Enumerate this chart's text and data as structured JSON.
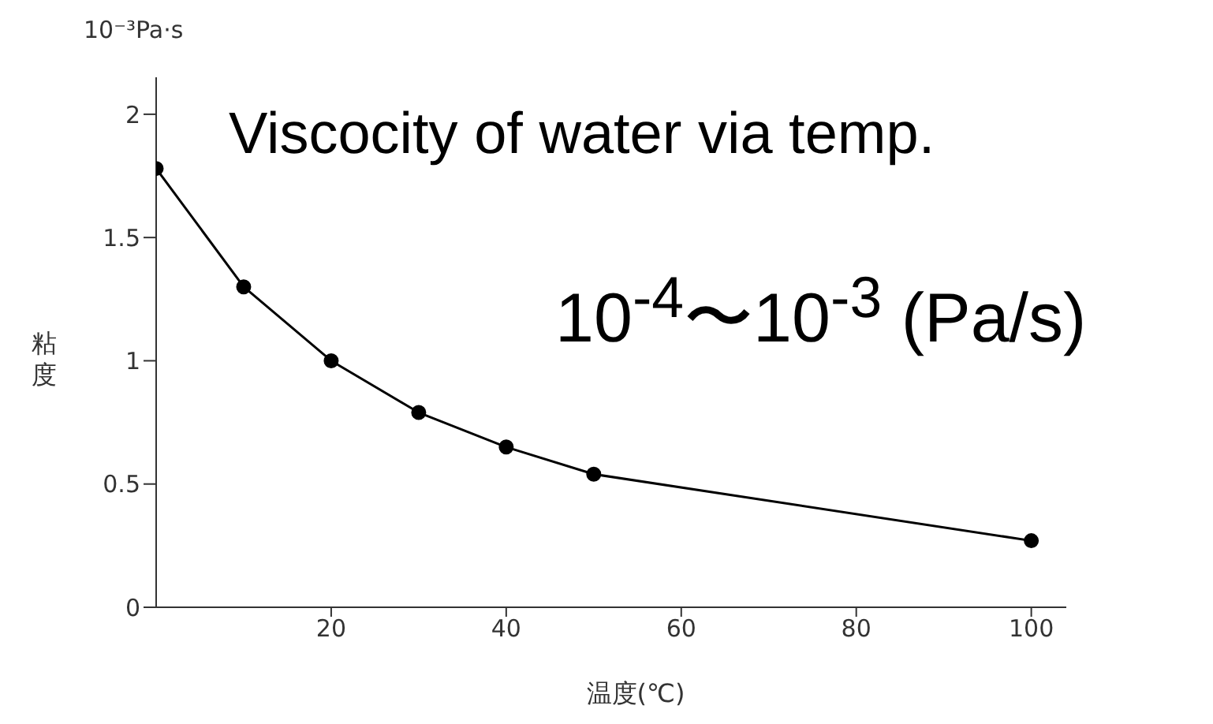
{
  "chart_data": {
    "type": "line",
    "title": "Viscocity of water via temp.",
    "xlabel": "温度(℃)",
    "ylabel": "粘度",
    "annotations": [
      "10⁻³Pa·s",
      "10$^{-4}$〜10$^{-3}$ (Pa/s)"
    ],
    "x": [
      0,
      10,
      20,
      30,
      40,
      50,
      100
    ],
    "series": [
      {
        "color": "#000000",
        "values": [
          1.78,
          1.3,
          1.0,
          0.79,
          0.65,
          0.54,
          0.27
        ]
      }
    ],
    "xlim": [
      0,
      104
    ],
    "xticks": [
      20,
      40,
      60,
      80,
      100
    ],
    "ylim": [
      0,
      2.15
    ],
    "yticks": [
      0,
      0.5,
      1,
      1.5,
      2
    ],
    "grid": false,
    "legend": false,
    "marker": "circle",
    "line_style": "solid"
  }
}
